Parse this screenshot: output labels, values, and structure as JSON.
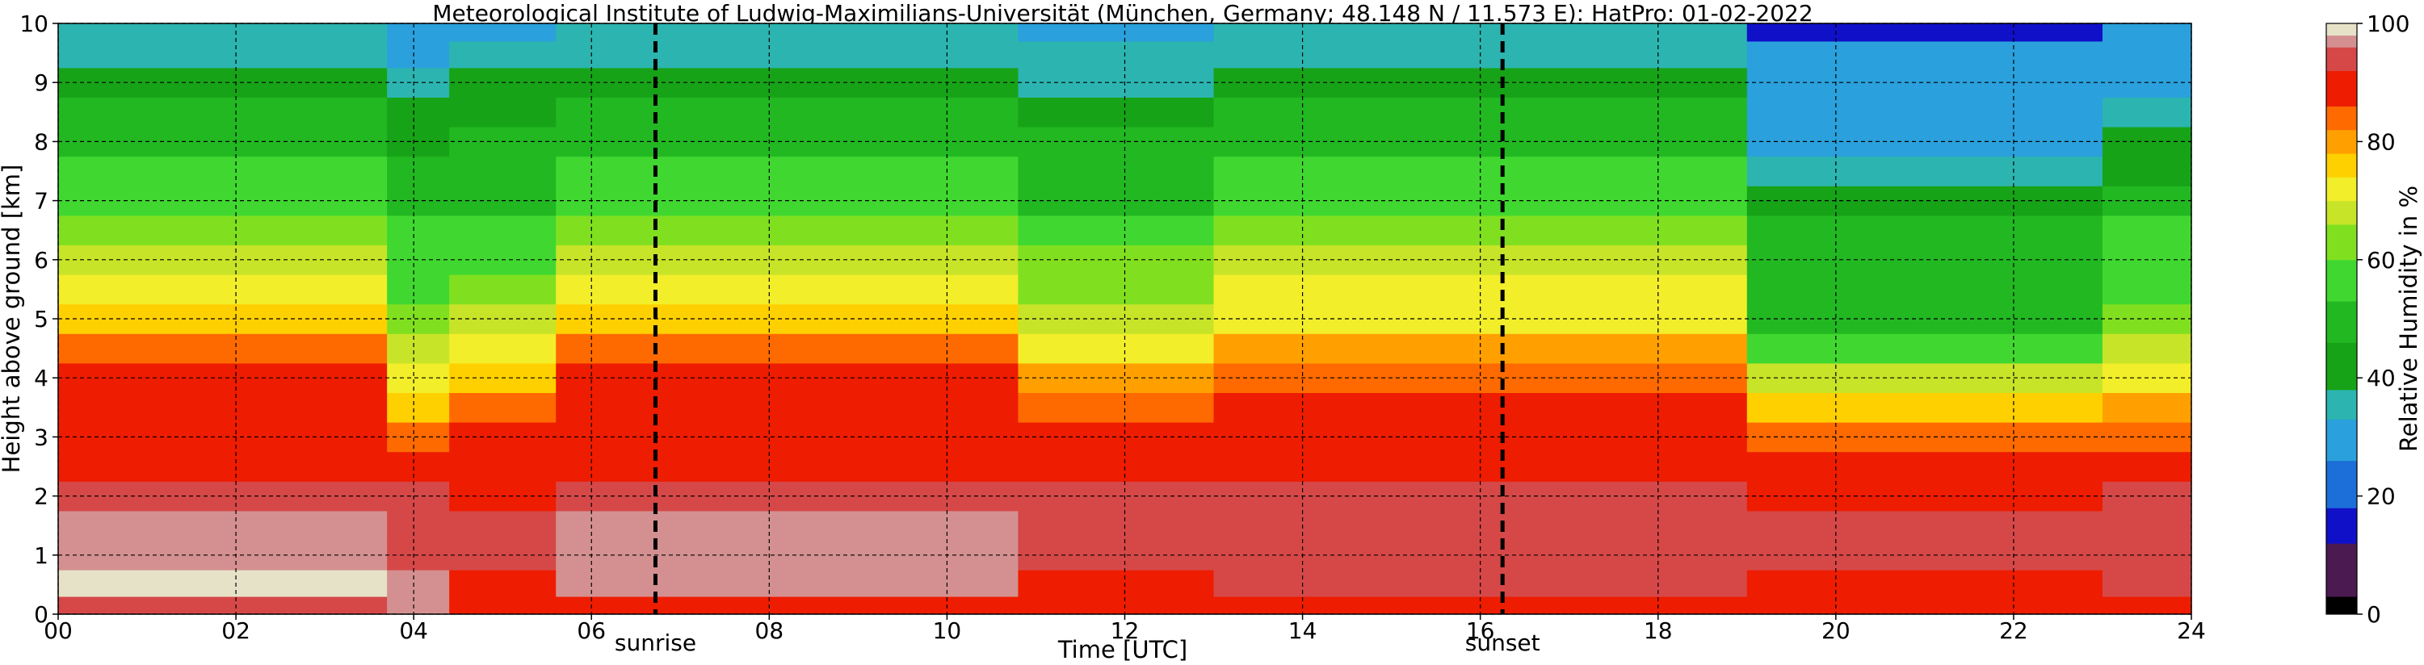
{
  "chart_data": {
    "type": "heatmap",
    "title": "Meteorological Institute of Ludwig-Maximilians-Universität (München, Germany; 48.148 N / 11.573 E):    HatPro: 01-02-2022",
    "xlabel": "Time [UTC]",
    "ylabel": "Height above ground [km]",
    "colorbar_label": "Relative Humidity in %",
    "xlim": [
      0,
      24
    ],
    "ylim": [
      0,
      10
    ],
    "x_ticks": [
      "00",
      "02",
      "04",
      "06",
      "08",
      "10",
      "12",
      "14",
      "16",
      "18",
      "20",
      "22",
      "24"
    ],
    "y_ticks": [
      "0",
      "1",
      "2",
      "3",
      "4",
      "5",
      "6",
      "7",
      "8",
      "9",
      "10"
    ],
    "colorbar_ticks": [
      "0",
      "20",
      "40",
      "60",
      "80",
      "100"
    ],
    "colorbar_range": [
      0,
      100
    ],
    "grid": true,
    "markers": [
      {
        "label": "sunrise",
        "time_utc_hours": 6.72
      },
      {
        "label": "sunset",
        "time_utc_hours": 16.25
      }
    ],
    "colormap": [
      {
        "from": 0,
        "to": 3,
        "color": "#000000"
      },
      {
        "from": 3,
        "to": 12,
        "color": "#4a1a50"
      },
      {
        "from": 12,
        "to": 18,
        "color": "#1010c8"
      },
      {
        "from": 18,
        "to": 26,
        "color": "#1c6ed8"
      },
      {
        "from": 26,
        "to": 33,
        "color": "#2aa0dc"
      },
      {
        "from": 33,
        "to": 38,
        "color": "#2cb4b0"
      },
      {
        "from": 38,
        "to": 46,
        "color": "#17a317"
      },
      {
        "from": 46,
        "to": 53,
        "color": "#22b822"
      },
      {
        "from": 53,
        "to": 60,
        "color": "#40d830"
      },
      {
        "from": 60,
        "to": 66,
        "color": "#80e020"
      },
      {
        "from": 66,
        "to": 70,
        "color": "#c8e428"
      },
      {
        "from": 70,
        "to": 74,
        "color": "#f2ee2a"
      },
      {
        "from": 74,
        "to": 78,
        "color": "#ffd000"
      },
      {
        "from": 78,
        "to": 82,
        "color": "#ffa000"
      },
      {
        "from": 82,
        "to": 86,
        "color": "#ff6a00"
      },
      {
        "from": 86,
        "to": 92,
        "color": "#ee1c00"
      },
      {
        "from": 92,
        "to": 96,
        "color": "#d64848"
      },
      {
        "from": 96,
        "to": 98,
        "color": "#d49090"
      },
      {
        "from": 98,
        "to": 100,
        "color": "#e6e2c8"
      }
    ],
    "humidity_profile": {
      "heights_km": [
        0.1,
        0.5,
        1.0,
        1.5,
        2.0,
        2.5,
        3.0,
        3.5,
        4.0,
        4.5,
        5.0,
        5.5,
        6.0,
        6.5,
        7.0,
        7.5,
        8.0,
        8.5,
        9.0,
        9.5,
        9.9
      ],
      "periods": [
        {
          "time_range": [
            0.0,
            3.7
          ],
          "rh_percent": [
            92,
            99,
            97,
            96,
            95,
            88,
            87,
            86,
            86,
            84,
            74,
            72,
            68,
            62,
            58,
            54,
            50,
            46,
            40,
            36,
            34
          ]
        },
        {
          "time_range": [
            3.7,
            4.4
          ],
          "rh_percent": [
            97,
            96,
            95,
            93,
            92,
            89,
            83,
            76,
            70,
            66,
            62,
            58,
            56,
            54,
            52,
            48,
            44,
            40,
            35,
            32,
            30
          ]
        },
        {
          "time_range": [
            4.4,
            5.6
          ],
          "rh_percent": [
            88,
            90,
            92,
            93,
            91,
            88,
            86,
            82,
            76,
            70,
            66,
            62,
            58,
            56,
            52,
            48,
            46,
            42,
            38,
            34,
            32
          ]
        },
        {
          "time_range": [
            5.6,
            10.8
          ],
          "rh_percent": [
            88,
            96,
            96,
            96,
            95,
            88,
            87,
            86,
            86,
            84,
            74,
            72,
            68,
            62,
            58,
            54,
            50,
            46,
            40,
            36,
            34
          ]
        },
        {
          "time_range": [
            10.8,
            13.0
          ],
          "rh_percent": [
            88,
            90,
            94,
            95,
            93,
            88,
            86,
            84,
            78,
            72,
            68,
            64,
            60,
            56,
            52,
            48,
            46,
            42,
            37,
            34,
            32
          ]
        },
        {
          "time_range": [
            13.0,
            19.0
          ],
          "rh_percent": [
            88,
            92,
            95,
            95,
            94,
            88,
            87,
            86,
            84,
            80,
            73,
            71,
            67,
            62,
            58,
            54,
            50,
            46,
            40,
            36,
            34
          ]
        },
        {
          "time_range": [
            19.0,
            23.0
          ],
          "rh_percent": [
            88,
            90,
            92,
            92,
            90,
            88,
            84,
            76,
            66,
            58,
            52,
            50,
            48,
            46,
            40,
            34,
            32,
            30,
            28,
            26,
            14
          ]
        },
        {
          "time_range": [
            23.0,
            24.0
          ],
          "rh_percent": [
            90,
            92,
            95,
            95,
            94,
            88,
            84,
            78,
            70,
            66,
            62,
            58,
            56,
            54,
            48,
            42,
            40,
            36,
            32,
            30,
            28
          ]
        }
      ]
    }
  }
}
